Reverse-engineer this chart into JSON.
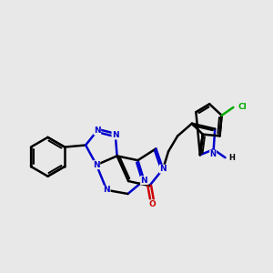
{
  "background_color": "#e8e8e8",
  "bond_color": "#000000",
  "N_color": "#0000cc",
  "O_color": "#cc0000",
  "Cl_color": "#00aa00",
  "line_width": 1.8,
  "figsize": [
    3.0,
    3.0
  ],
  "dpi": 100,
  "xlim": [
    0,
    10
  ],
  "ylim": [
    0,
    10
  ]
}
